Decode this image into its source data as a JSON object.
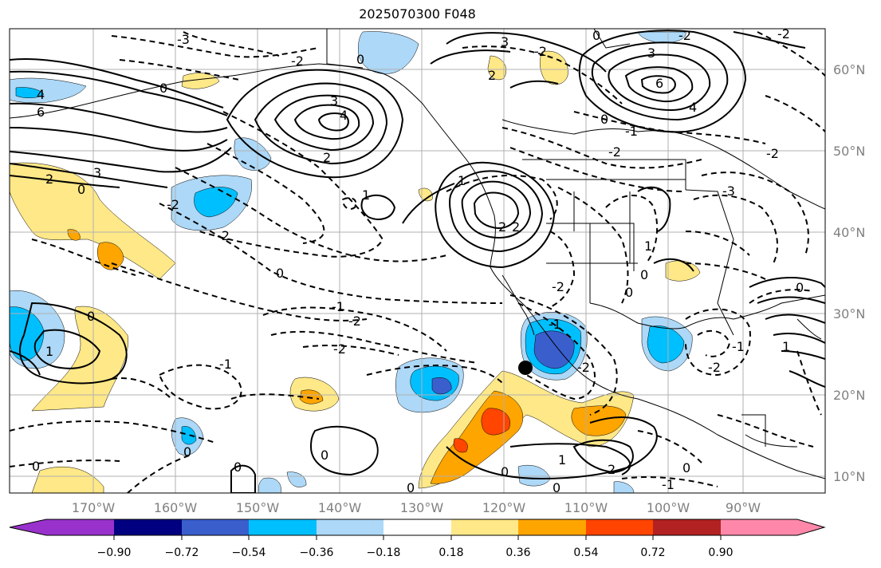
{
  "title": "2025070300 F048",
  "map": {
    "lon_range": [
      -180,
      -80
    ],
    "lat_range": [
      8,
      65
    ],
    "latitude_labels": [
      "60°N",
      "50°N",
      "40°N",
      "30°N",
      "20°N",
      "10°N"
    ],
    "longitude_labels": [
      "170°W",
      "160°W",
      "150°W",
      "140°W",
      "130°W",
      "120°W",
      "110°W",
      "100°W",
      "90°W"
    ],
    "contour_labels": [
      "-3",
      "-2",
      "-1",
      "0",
      "1",
      "2",
      "3",
      "4",
      "6"
    ],
    "marker": {
      "lon": -116.5,
      "lat": 23.3,
      "color": "#000000"
    }
  },
  "colorbar": {
    "tick_labels": [
      "−0.90",
      "−0.72",
      "−0.54",
      "−0.36",
      "−0.18",
      "0.18",
      "0.36",
      "0.54",
      "0.72",
      "0.90"
    ],
    "colors": [
      "#9932cc",
      "#000080",
      "#3a5fcd",
      "#00bfff",
      "#add8f7",
      "#ffffff",
      "#ffe887",
      "#ffa500",
      "#ff4500",
      "#b22222",
      "#ff88aa"
    ]
  }
}
